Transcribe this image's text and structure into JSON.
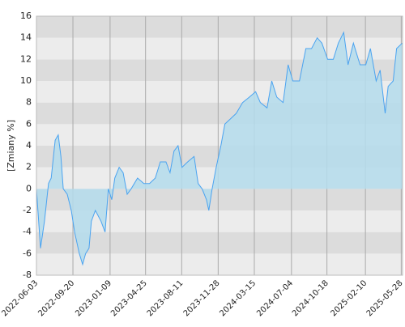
{
  "chart_data": {
    "type": "area",
    "ylabel": "[Zmiany %]",
    "x": [
      "2022-06-03",
      "2022-06-15",
      "2022-06-27",
      "2022-07-09",
      "2022-07-17",
      "2022-07-29",
      "2022-08-07",
      "2022-08-15",
      "2022-08-22",
      "2022-09-03",
      "2022-09-15",
      "2022-09-25",
      "2022-10-09",
      "2022-10-19",
      "2022-10-28",
      "2022-11-07",
      "2022-11-14",
      "2022-11-26",
      "2022-12-13",
      "2022-12-25",
      "2023-01-04",
      "2023-01-14",
      "2023-01-23",
      "2023-02-05",
      "2023-02-17",
      "2023-03-01",
      "2023-03-13",
      "2023-04-01",
      "2023-04-20",
      "2023-05-07",
      "2023-05-24",
      "2023-06-08",
      "2023-06-25",
      "2023-07-07",
      "2023-07-19",
      "2023-07-31",
      "2023-08-12",
      "2023-08-29",
      "2023-09-17",
      "2023-09-29",
      "2023-10-11",
      "2023-10-24",
      "2023-10-31",
      "2023-11-10",
      "2023-11-22",
      "2023-12-06",
      "2023-12-18",
      "2024-01-04",
      "2024-01-21",
      "2024-02-09",
      "2024-02-29",
      "2024-03-19",
      "2024-04-02",
      "2024-04-22",
      "2024-05-06",
      "2024-05-21",
      "2024-06-09",
      "2024-06-24",
      "2024-07-08",
      "2024-07-28",
      "2024-08-16",
      "2024-09-02",
      "2024-09-19",
      "2024-10-03",
      "2024-10-20",
      "2024-11-06",
      "2024-11-21",
      "2024-12-07",
      "2024-12-20",
      "2025-01-05",
      "2025-01-25",
      "2025-02-11",
      "2025-02-25",
      "2025-03-14",
      "2025-03-26",
      "2025-04-10",
      "2025-04-19",
      "2025-05-04",
      "2025-05-14",
      "2025-05-31"
    ],
    "series": [
      {
        "color": "#4aa3f0",
        "fill": "#b4dcec",
        "values": [
          0,
          -5.5,
          -3,
          0.5,
          1,
          4.5,
          5,
          3,
          0,
          -0.5,
          -2,
          -4,
          -6,
          -7,
          -6,
          -5.5,
          -3,
          -2,
          -3,
          -4,
          0,
          -1,
          1,
          2,
          1.5,
          -0.5,
          0,
          1,
          0.5,
          0.5,
          1,
          2.5,
          2.5,
          1.5,
          3.5,
          4,
          2,
          2.5,
          3,
          0.5,
          0,
          -1,
          -2,
          0,
          2,
          4,
          6,
          6.5,
          7,
          8,
          8.5,
          9,
          8,
          7.5,
          10,
          8.5,
          8,
          11.5,
          10,
          10,
          13,
          13,
          14,
          13.5,
          12,
          12,
          13.5,
          14.5,
          11.5,
          13.5,
          11.5,
          11.5,
          13,
          10,
          11,
          7,
          9.5,
          10,
          13,
          13.5
        ]
      }
    ],
    "xlim": [
      "2022-06-03",
      "2025-06-01"
    ],
    "xticks": [
      "2022-06-03",
      "2022-09-20",
      "2023-01-09",
      "2023-04-25",
      "2023-08-11",
      "2023-11-28",
      "2024-03-15",
      "2024-07-04",
      "2024-10-18",
      "2025-02-10",
      "2025-05-28"
    ],
    "ylim": [
      -8,
      16
    ],
    "yticks": [
      -8,
      -6,
      -4,
      -2,
      0,
      2,
      4,
      6,
      8,
      10,
      12,
      14,
      16
    ],
    "band_colors": [
      "#ececec",
      "#dcdcdc"
    ],
    "grid": true
  }
}
